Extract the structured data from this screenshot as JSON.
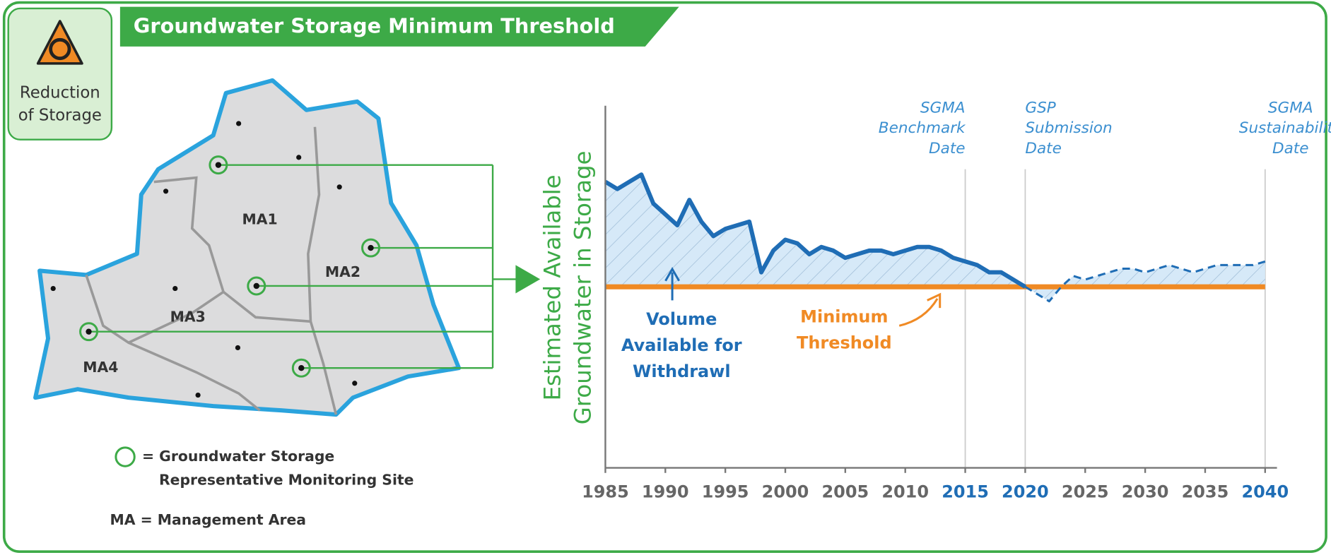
{
  "header": {
    "title": "Groundwater Storage Minimum Threshold"
  },
  "badge": {
    "lines": [
      "Reduction",
      "of Storage"
    ]
  },
  "map": {
    "areas": [
      "MA1",
      "MA2",
      "MA3",
      "MA4"
    ]
  },
  "legend": {
    "site": [
      "= Groundwater Storage",
      "Representative Monitoring Site"
    ],
    "ma": "MA = Management Area"
  },
  "chart_data": {
    "type": "line",
    "ylabel": [
      "Estimated Available",
      "Groundwater  in Storage"
    ],
    "x": [
      1985,
      1986,
      1987,
      1988,
      1989,
      1990,
      1991,
      1992,
      1993,
      1994,
      1995,
      1996,
      1997,
      1998,
      1999,
      2000,
      2001,
      2002,
      2003,
      2004,
      2005,
      2006,
      2007,
      2008,
      2009,
      2010,
      2011,
      2012,
      2013,
      2014,
      2015,
      2016,
      2017,
      2018,
      2019,
      2020,
      2021,
      2022,
      2023,
      2024,
      2025,
      2026,
      2027,
      2028,
      2029,
      2030,
      2031,
      2032,
      2033,
      2034,
      2035,
      2036,
      2037,
      2038,
      2039,
      2040
    ],
    "series": [
      {
        "color": "#1f6db5",
        "dash": false,
        "values": [
          79,
          77,
          79,
          81,
          73,
          70,
          67,
          74,
          68,
          64,
          66,
          67,
          68,
          54,
          60,
          63,
          62,
          59,
          61,
          60,
          58,
          59,
          60,
          60,
          59,
          60,
          61,
          61,
          60,
          58,
          57,
          56,
          54,
          54,
          52,
          50,
          null,
          null,
          null,
          null,
          null,
          null,
          null,
          null,
          null,
          null,
          null,
          null,
          null,
          null,
          null,
          null,
          null,
          null,
          null,
          null
        ]
      },
      {
        "color": "#1f6db5",
        "dash": true,
        "values": [
          null,
          null,
          null,
          null,
          null,
          null,
          null,
          null,
          null,
          null,
          null,
          null,
          null,
          null,
          null,
          null,
          null,
          null,
          null,
          null,
          null,
          null,
          null,
          null,
          null,
          null,
          null,
          null,
          null,
          null,
          null,
          null,
          null,
          null,
          null,
          50,
          48,
          46,
          50,
          53,
          52,
          53,
          54,
          55,
          55,
          54,
          55,
          56,
          55,
          54,
          55,
          56,
          56,
          56,
          56,
          57
        ]
      }
    ],
    "threshold": 50,
    "threshold_color": "#f08a24",
    "area_color": "#d6e9f8",
    "xlim": [
      1985,
      2040
    ],
    "ylim": [
      0,
      100
    ],
    "xticks": [
      1985,
      1990,
      1995,
      2000,
      2005,
      2010,
      2015,
      2020,
      2025,
      2030,
      2035,
      2040
    ],
    "events": [
      {
        "x": 2015,
        "label": [
          "SGMA",
          "Benchmark",
          "Date"
        ]
      },
      {
        "x": 2020,
        "label": [
          "GSP",
          "Submission",
          "Date"
        ]
      },
      {
        "x": 2040,
        "label": [
          "SGMA",
          "Sustainability",
          "Date"
        ]
      }
    ],
    "annotations": [
      {
        "text": [
          "Volume",
          "Available for",
          "Withdrawl"
        ],
        "color": "#1f6db5"
      },
      {
        "text": [
          "Minimum",
          "Threshold"
        ],
        "color": "#f08a24"
      }
    ]
  }
}
